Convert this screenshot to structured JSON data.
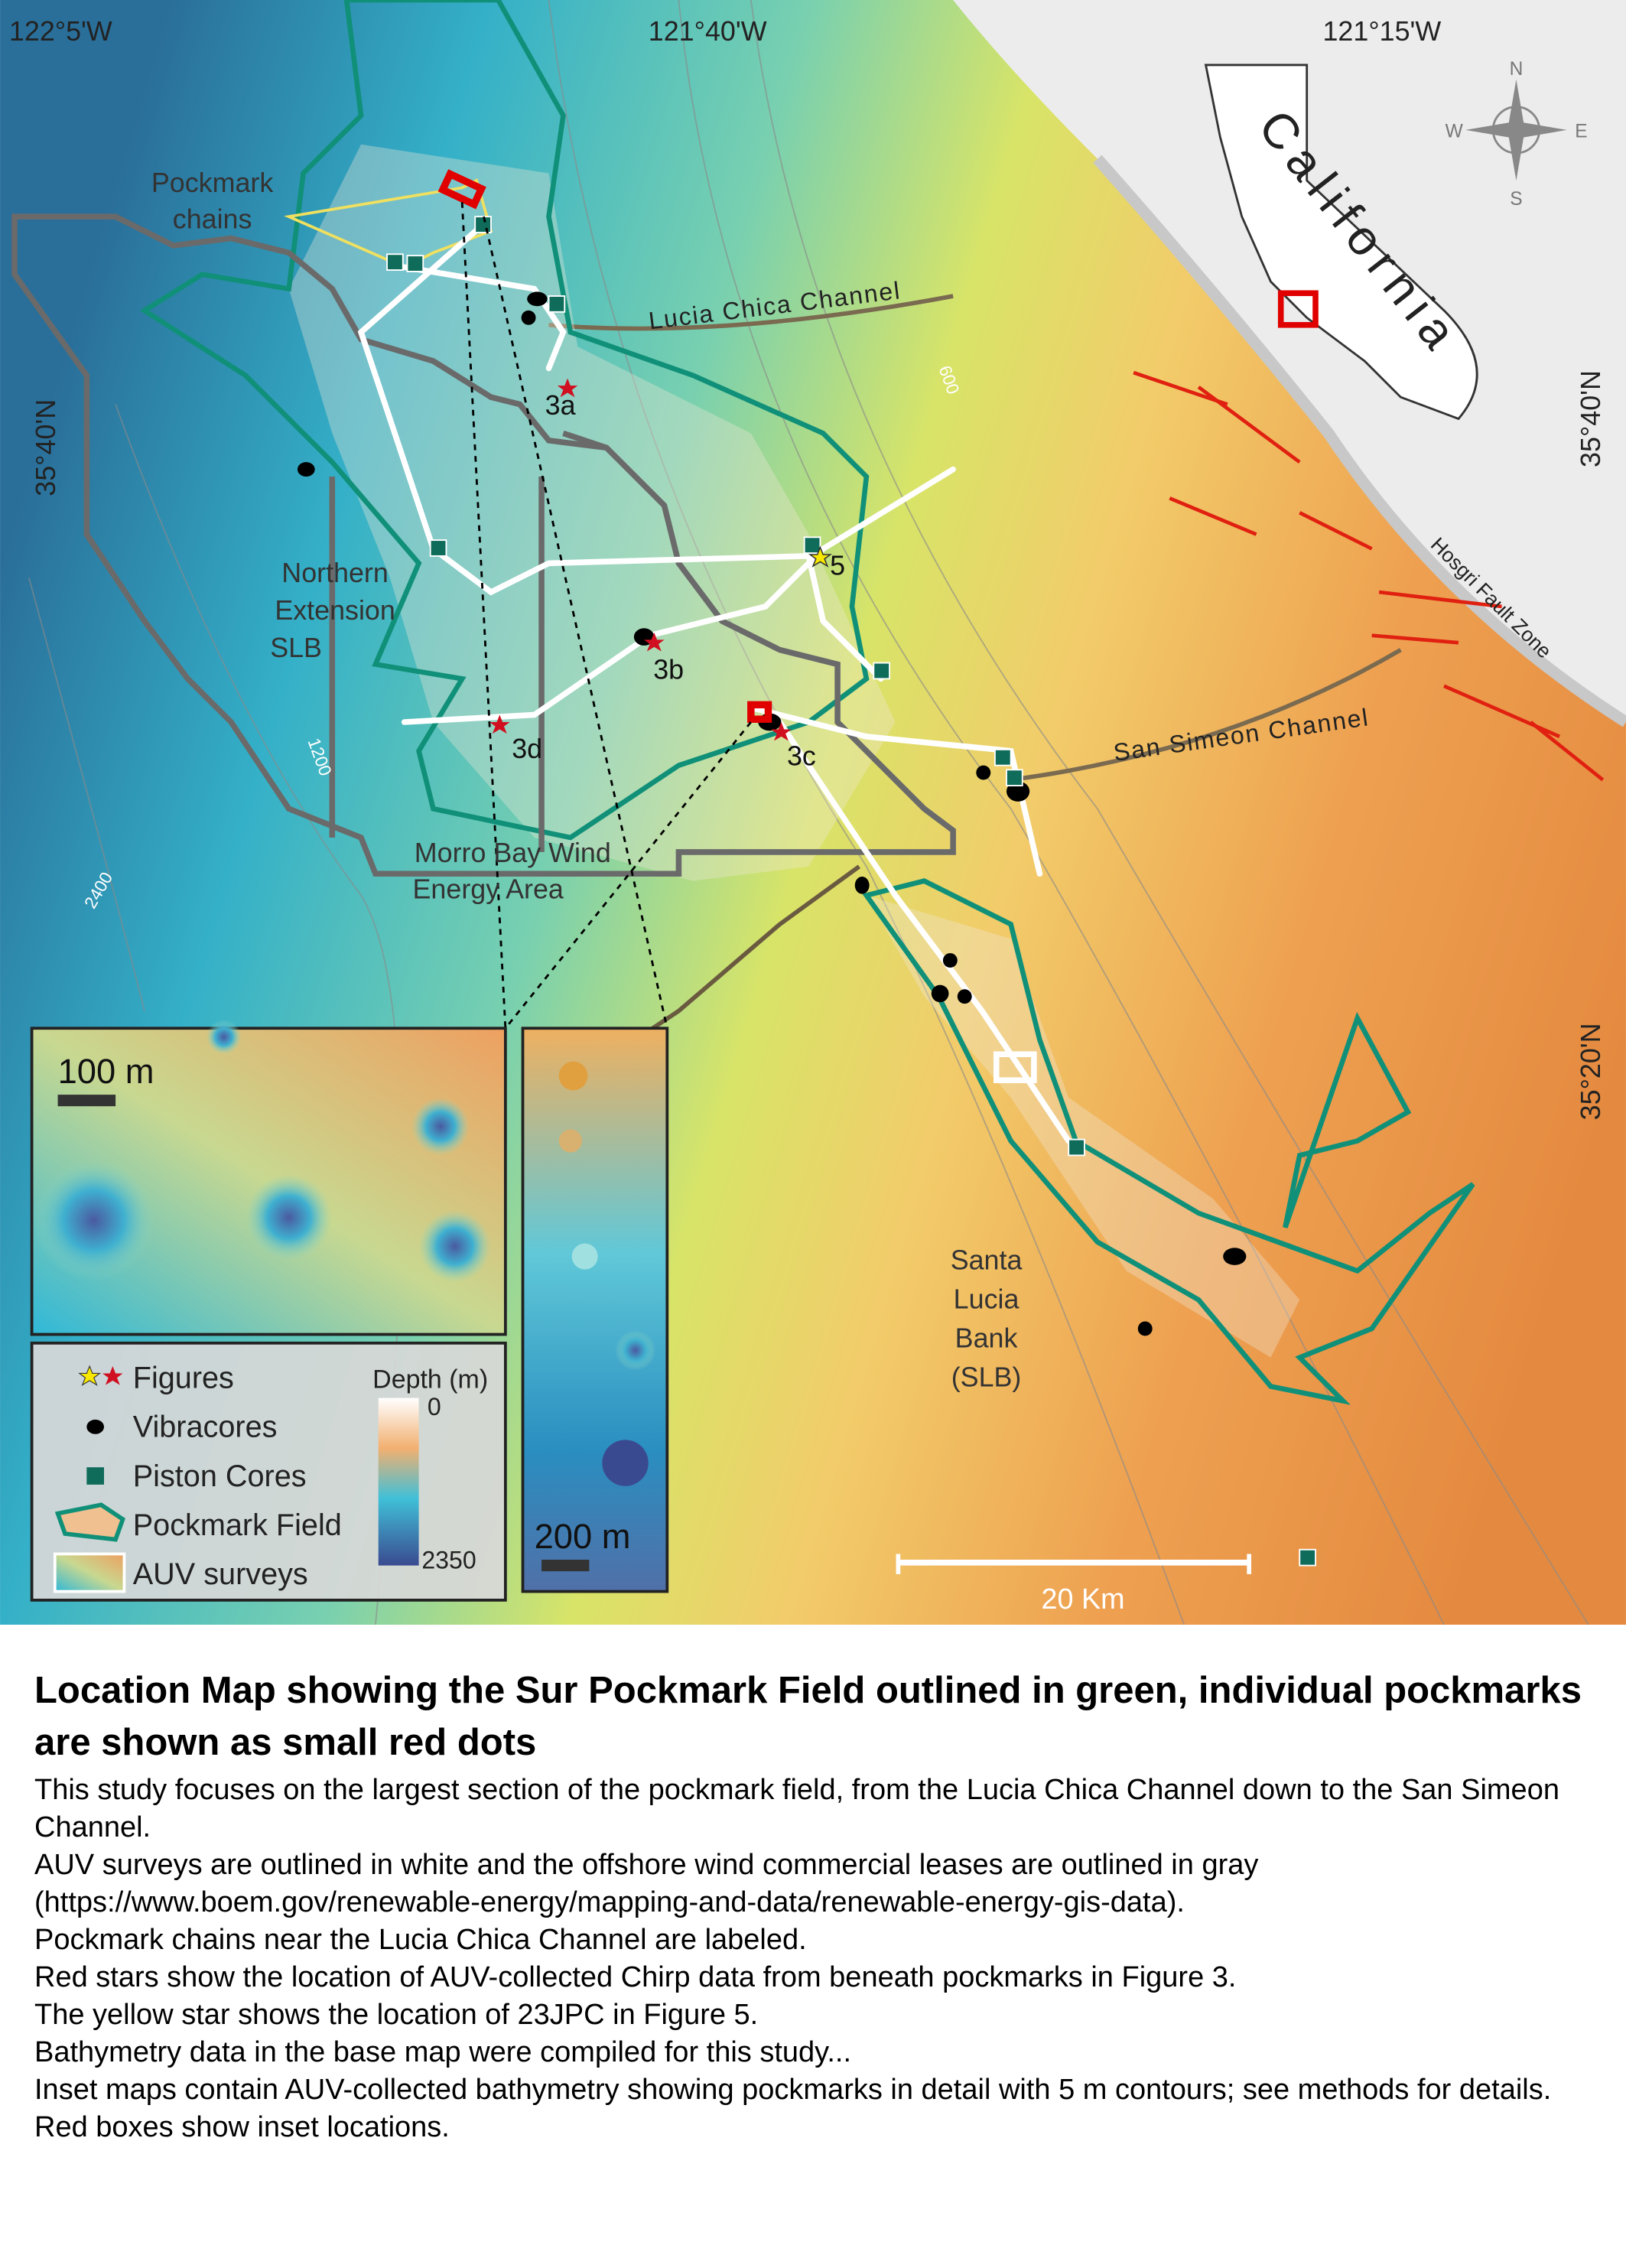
{
  "map": {
    "top_axis_labels": [
      "122°5'W",
      "121°40'W",
      "121°15'W"
    ],
    "left_axis_labels": [
      "35°40'N"
    ],
    "right_axis_labels": [
      "35°40'N",
      "35°20'N"
    ],
    "pockmark_chains": [
      "Pockmark",
      "chains"
    ],
    "lucia_chica": "Lucia Chica Channel",
    "san_simeon": "San Simeon Channel",
    "hosgri": "Hosgri Fault Zone",
    "california": "California",
    "compass": [
      "N",
      "S",
      "E",
      "W"
    ],
    "northern_extension": [
      "Northern",
      "Extension",
      "SLB"
    ],
    "morro_bay": [
      "Morro Bay Wind",
      "Energy Area"
    ],
    "santa_lucia": [
      "Santa",
      "Lucia",
      "Bank",
      "(SLB)"
    ],
    "figure_labels": [
      "3a",
      "3b",
      "3c",
      "3d",
      "5"
    ],
    "contours": [
      "600",
      "1200",
      "2400"
    ],
    "left_inset_scale": "100 m",
    "right_inset_scale": "200 m",
    "scale_bar": "20 Km",
    "legend": {
      "items": [
        "Figures",
        "Vibracores",
        "Piston Cores",
        "Pockmark Field",
        "AUV surveys"
      ],
      "depth_title": "Depth (m)",
      "depth_min": 0,
      "depth_max": 2350
    }
  },
  "caption": {
    "title": "Location Map showing the Sur Pockmark Field outlined in green, individual pockmarks are shown as small red dots",
    "lines": [
      "This study focuses on the largest section of the pockmark field, from the Lucia Chica Channel down to the San Simeon Channel.",
      "AUV surveys are outlined in white and the offshore wind commercial leases are outlined in gray (https://www.boem.gov/renewable-energy/mapping-and-data/renewable-energy-gis-data).",
      "Pockmark chains near the Lucia Chica Channel are labeled.",
      "Red stars show the location of AUV-collected Chirp data from beneath pockmarks in Figure 3.",
      "The yellow star shows the location of 23JPC in Figure 5.",
      "Bathymetry data in the base map were compiled for this study...",
      "Inset maps contain AUV-collected bathymetry showing pockmarks in detail with 5 m contours; see methods for details. Red boxes show inset locations."
    ]
  }
}
